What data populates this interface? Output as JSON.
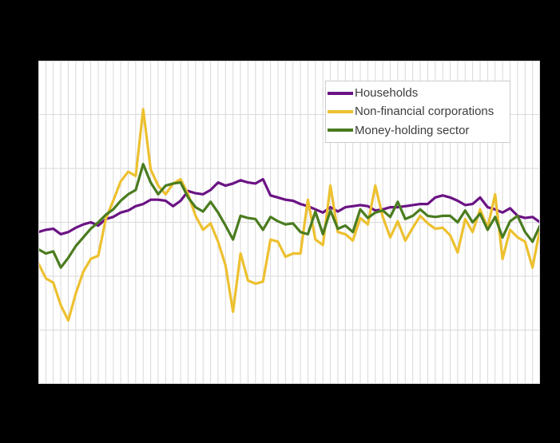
{
  "colors": {
    "page_background": "#000000",
    "plot_background": "#ffffff",
    "gridline": "#d9d9d9",
    "legend_background": "#ffffff",
    "legend_border": "#cccccc",
    "legend_text": "#3d3d3d",
    "households": "#6b1384",
    "non_financial_corporations": "#edc02f",
    "money_holding_sector": "#4a7c1f"
  },
  "chart_data": {
    "type": "line",
    "title": "",
    "xlabel": "",
    "ylabel": "",
    "x_axis": {
      "tick_labels_visible": false,
      "points": 68,
      "gridlines_at_every_point": true
    },
    "y_axis": {
      "min": -10,
      "max": 20,
      "gridline_step": 5,
      "tick_labels_visible": false
    },
    "legend": {
      "position": "inside-top-right"
    },
    "series": [
      {
        "name": "Households",
        "color": "#6b1384",
        "values": [
          4.1,
          4.3,
          4.4,
          3.9,
          4.1,
          4.5,
          4.8,
          5.0,
          4.7,
          5.3,
          5.5,
          5.9,
          6.1,
          6.5,
          6.7,
          7.1,
          7.1,
          7.0,
          6.5,
          7.0,
          7.9,
          7.7,
          7.6,
          8.0,
          8.7,
          8.4,
          8.6,
          8.9,
          8.7,
          8.6,
          9.0,
          7.5,
          7.3,
          7.1,
          7.0,
          6.7,
          6.5,
          6.2,
          5.9,
          6.4,
          6.0,
          6.4,
          6.5,
          6.6,
          6.5,
          6.1,
          6.2,
          6.4,
          6.4,
          6.5,
          6.6,
          6.7,
          6.7,
          7.3,
          7.5,
          7.3,
          7.0,
          6.6,
          6.7,
          7.3,
          6.4,
          6.2,
          5.9,
          6.3,
          5.6,
          5.4,
          5.5,
          5.0
        ]
      },
      {
        "name": "Non-financial corporations",
        "color": "#edc02f",
        "values": [
          1.2,
          -0.2,
          -0.6,
          -2.7,
          -4.1,
          -1.6,
          0.4,
          1.6,
          1.9,
          5.3,
          7.0,
          8.8,
          9.7,
          9.3,
          15.5,
          9.9,
          8.4,
          7.6,
          8.6,
          9.0,
          7.6,
          5.6,
          4.3,
          4.9,
          3.2,
          1.0,
          -3.3,
          2.1,
          -0.4,
          -0.7,
          -0.5,
          3.4,
          3.2,
          1.8,
          2.1,
          2.1,
          7.1,
          3.4,
          2.9,
          8.4,
          4.1,
          3.9,
          3.3,
          5.4,
          4.8,
          8.4,
          5.5,
          3.6,
          5.1,
          3.3,
          4.5,
          5.6,
          4.9,
          4.4,
          4.5,
          3.8,
          2.2,
          5.3,
          4.1,
          6.2,
          4.5,
          7.6,
          1.6,
          4.3,
          3.6,
          3.2,
          0.8,
          4.4
        ]
      },
      {
        "name": "Money-holding sector",
        "color": "#4a7c1f",
        "values": [
          2.5,
          2.1,
          2.3,
          0.8,
          1.7,
          2.8,
          3.6,
          4.4,
          5.0,
          5.7,
          6.2,
          7.0,
          7.6,
          8.0,
          10.4,
          8.7,
          7.6,
          8.4,
          8.6,
          8.7,
          7.3,
          6.4,
          6.0,
          6.9,
          5.9,
          4.7,
          3.4,
          5.6,
          5.4,
          5.3,
          4.3,
          5.5,
          5.1,
          4.8,
          4.9,
          4.1,
          3.9,
          6.0,
          3.9,
          6.1,
          4.4,
          4.7,
          4.1,
          6.2,
          5.4,
          5.9,
          6.1,
          5.5,
          6.9,
          5.3,
          5.6,
          6.2,
          5.6,
          5.5,
          5.6,
          5.6,
          5.0,
          6.1,
          5.0,
          5.8,
          4.3,
          5.5,
          3.6,
          5.1,
          5.6,
          4.1,
          3.2,
          4.7
        ]
      }
    ]
  }
}
